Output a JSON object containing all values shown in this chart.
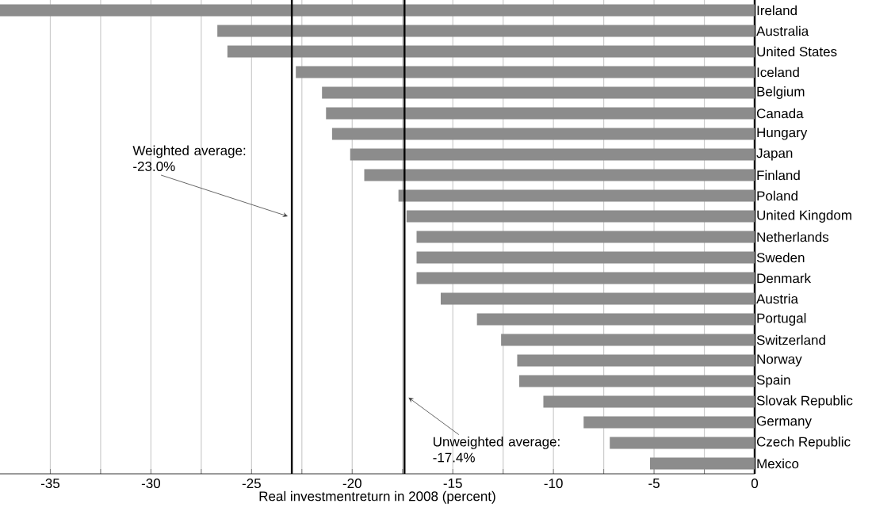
{
  "chart_data": {
    "type": "bar",
    "orientation": "horizontal",
    "xlabel": "Real investmentreturn in 2008 (percent)",
    "categories": [
      "Ireland",
      "Australia",
      "United States",
      "Iceland",
      "Belgium",
      "Canada",
      "Hungary",
      "Japan",
      "Finland",
      "Poland",
      "United Kingdom",
      "Netherlands",
      "Sweden",
      "Denmark",
      "Austria",
      "Portugal",
      "Switzerland",
      "Norway",
      "Spain",
      "Slovak Republic",
      "Germany",
      "Czech Republic",
      "Mexico"
    ],
    "values": [
      -37.5,
      -26.7,
      -26.2,
      -22.8,
      -21.5,
      -21.3,
      -21.0,
      -20.1,
      -19.4,
      -17.7,
      -17.3,
      -16.8,
      -16.8,
      -16.8,
      -15.6,
      -13.8,
      -12.6,
      -11.8,
      -11.7,
      -10.5,
      -8.5,
      -7.2,
      -5.2
    ],
    "color": "#8c8c8c",
    "xlim": [
      -37.5,
      0
    ],
    "xticks": [
      -35,
      {
        "value": -32.5,
        "label": null
      },
      -30,
      {
        "value": -27.5,
        "label": null
      },
      -25,
      {
        "value": -22.5,
        "label": null
      },
      -20,
      {
        "value": -17.5,
        "label": null
      },
      -15,
      {
        "value": -12.5,
        "label": null
      },
      -10,
      {
        "value": -7.5,
        "label": null
      },
      -5,
      {
        "value": -2.5,
        "label": null
      },
      0
    ],
    "grid": "x",
    "ref_lines": [
      {
        "axis": "x",
        "value": -23.0,
        "label": "Weighted average: -23.0%",
        "color": "#000000"
      },
      {
        "axis": "x",
        "value": -17.4,
        "label": "Unweighted average: -17.4%",
        "color": "#000000"
      }
    ]
  }
}
